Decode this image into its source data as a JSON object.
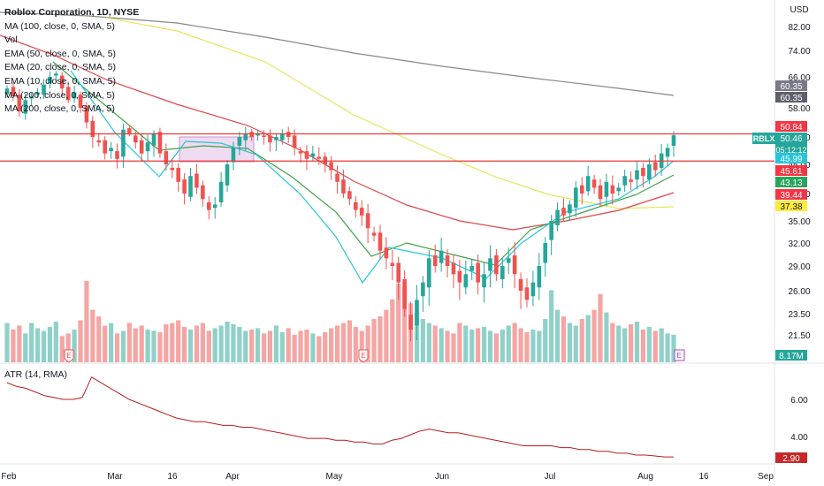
{
  "header": {
    "title": "Roblox Corporation, 1D, NYSE",
    "indicators": [
      "MA (100, close, 0, SMA, 5)",
      "Vol",
      "EMA (50, close, 0, SMA, 5)",
      "EMA (20, close, 0, SMA, 5)",
      "EMA (10, close, 0, SMA, 5)",
      "MA (200, close, 0, SMA, 5)",
      "MA (200, close, 0, SMA, 5)"
    ],
    "atr_label": "ATR (14, RMA)"
  },
  "chart_data": {
    "type": "candlestick",
    "symbol": "RBLX",
    "currency": "USD",
    "x_ticks": [
      "Feb",
      "Mar",
      "16",
      "Apr",
      "May",
      "Jun",
      "Jul",
      "Aug",
      "16",
      "Sep"
    ],
    "y_ticks": [
      "82.00",
      "74.00",
      "66.00",
      "58.00",
      "50.00",
      "45.00",
      "40.00",
      "35.00",
      "32.00",
      "29.00",
      "26.00",
      "23.50",
      "21.50"
    ],
    "atr_ticks": [
      "6.00",
      "4.00"
    ],
    "price_labels": [
      {
        "text": "60.35",
        "color": "#787b86"
      },
      {
        "text": "60.35",
        "color": "#5d606b"
      },
      {
        "text": "50.84",
        "color": "#f23645"
      },
      {
        "text": "50.46",
        "color": "#26a69a",
        "extra": "05:12:12",
        "symbol": "RBLX"
      },
      {
        "text": "45.99",
        "color": "#26c6da"
      },
      {
        "text": "45.61",
        "color": "#f23645"
      },
      {
        "text": "43.13",
        "color": "#26a65b"
      },
      {
        "text": "39.44",
        "color": "#f23645"
      },
      {
        "text": "37.38",
        "color": "#ffeb3b",
        "textColor": "#131722"
      },
      {
        "text": "8.17M",
        "color": "#26a69a"
      },
      {
        "text": "2.90",
        "color": "#c62828"
      }
    ],
    "horizontal_levels": [
      50.84,
      45.61
    ],
    "earnings_markers": [
      "E",
      "E",
      "E"
    ],
    "series": [
      {
        "name": "price",
        "values": [
          63,
          61,
          57,
          60,
          61,
          62,
          64,
          66,
          67,
          63,
          60,
          62,
          58,
          54,
          50,
          49,
          47,
          48,
          46,
          52,
          51,
          49,
          47,
          49,
          51,
          47,
          45,
          44,
          42,
          40,
          43,
          41,
          39,
          37,
          38,
          42,
          45,
          48,
          50,
          51,
          50,
          51,
          50,
          49,
          50,
          51,
          50,
          48,
          47,
          46,
          47,
          46,
          45,
          44,
          42,
          40,
          39,
          37,
          36,
          34,
          33,
          31,
          30,
          29,
          27,
          24,
          22,
          25,
          27,
          30,
          29,
          31,
          29,
          28,
          27,
          28,
          29,
          27,
          28,
          30,
          28,
          29,
          30,
          28,
          26,
          25,
          27,
          29,
          32,
          35,
          37,
          36,
          38,
          41,
          40,
          43,
          41,
          39,
          42,
          40,
          41,
          43,
          42,
          44,
          43,
          45,
          44,
          47,
          48,
          50.46
        ]
      },
      {
        "name": "volume",
        "values": [
          30,
          25,
          28,
          22,
          30,
          26,
          24,
          27,
          31,
          20,
          22,
          25,
          32,
          62,
          40,
          35,
          28,
          30,
          22,
          24,
          30,
          26,
          28,
          25,
          24,
          23,
          29,
          30,
          32,
          27,
          25,
          28,
          30,
          24,
          26,
          28,
          31,
          29,
          27,
          24,
          25,
          26,
          22,
          24,
          28,
          23,
          26,
          21,
          24,
          25,
          22,
          20,
          23,
          26,
          28,
          30,
          32,
          27,
          24,
          28,
          33,
          35,
          40,
          48,
          60,
          58,
          45,
          38,
          33,
          30,
          28,
          26,
          24,
          22,
          30,
          28,
          25,
          26,
          27,
          24,
          22,
          25,
          28,
          30,
          26,
          23,
          25,
          24,
          33,
          55,
          40,
          35,
          30,
          28,
          33,
          36,
          40,
          52,
          38,
          30,
          28,
          26,
          29,
          31,
          25,
          27,
          24,
          26,
          22,
          21
        ]
      },
      {
        "name": "ATR",
        "values": [
          6.9,
          6.7,
          6.6,
          6.4,
          6.2,
          6.1,
          6.0,
          6.0,
          6.1,
          7.2,
          6.9,
          6.6,
          6.3,
          6.0,
          5.8,
          5.6,
          5.4,
          5.2,
          5.0,
          4.9,
          4.8,
          4.8,
          4.7,
          4.6,
          4.6,
          4.5,
          4.5,
          4.4,
          4.3,
          4.2,
          4.1,
          4.0,
          3.9,
          3.9,
          3.9,
          3.8,
          3.8,
          3.7,
          3.7,
          3.6,
          3.6,
          3.8,
          3.9,
          4.1,
          4.3,
          4.4,
          4.3,
          4.2,
          4.2,
          4.1,
          4.0,
          3.9,
          3.8,
          3.7,
          3.6,
          3.5,
          3.5,
          3.5,
          3.5,
          3.4,
          3.4,
          3.3,
          3.3,
          3.2,
          3.2,
          3.1,
          3.1,
          3.0,
          3.0,
          2.95,
          2.9,
          2.9
        ]
      }
    ]
  }
}
